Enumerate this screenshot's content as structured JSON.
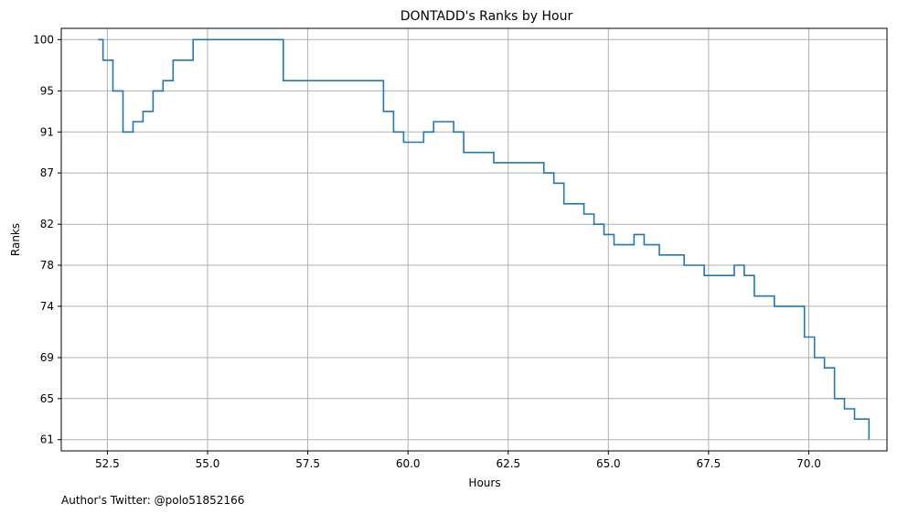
{
  "chart_data": {
    "type": "line",
    "step": true,
    "title": "DONTADD's Ranks by Hour",
    "xlabel": "Hours",
    "ylabel": "Ranks",
    "y_inverted": true,
    "grid": true,
    "xlim": [
      51.35,
      71.95
    ],
    "ylim": [
      101.1,
      59.9
    ],
    "xticks": [
      52.5,
      55.0,
      57.5,
      60.0,
      62.5,
      65.0,
      67.5,
      70.0
    ],
    "xtick_labels": [
      "52.5",
      "55.0",
      "57.5",
      "60.0",
      "62.5",
      "65.0",
      "67.5",
      "70.0"
    ],
    "yticks": [
      61,
      65,
      69,
      74,
      78,
      82,
      87,
      91,
      95,
      100
    ],
    "ytick_labels": [
      "61",
      "65",
      "69",
      "74",
      "78",
      "82",
      "87",
      "91",
      "95",
      "100"
    ],
    "line_color": "#1f77b4",
    "series": [
      {
        "x": [
          52.27,
          52.39,
          52.64,
          52.89,
          53.14,
          53.39,
          53.64,
          53.89,
          54.14,
          54.64,
          56.89,
          59.14,
          59.39,
          59.64,
          59.89,
          60.39,
          60.64,
          61.14,
          61.39,
          62.14,
          63.39,
          63.64,
          63.89,
          64.39,
          64.64,
          64.89,
          65.14,
          65.64,
          65.89,
          66.27,
          66.89,
          67.39,
          68.14,
          68.39,
          68.64,
          69.14,
          69.89,
          70.14,
          70.39,
          70.64,
          70.89,
          71.14,
          71.5
        ],
        "y": [
          100,
          98,
          95,
          91,
          92,
          93,
          95,
          96,
          98,
          100,
          96,
          96,
          93,
          91,
          90,
          91,
          92,
          91,
          89,
          88,
          87,
          86,
          84,
          83,
          82,
          81,
          80,
          81,
          80,
          79,
          78,
          77,
          78,
          77,
          75,
          74,
          71,
          69,
          68,
          65,
          64,
          63,
          61
        ]
      }
    ]
  },
  "footer": {
    "author_text": "Author's Twitter: @polo51852166"
  }
}
